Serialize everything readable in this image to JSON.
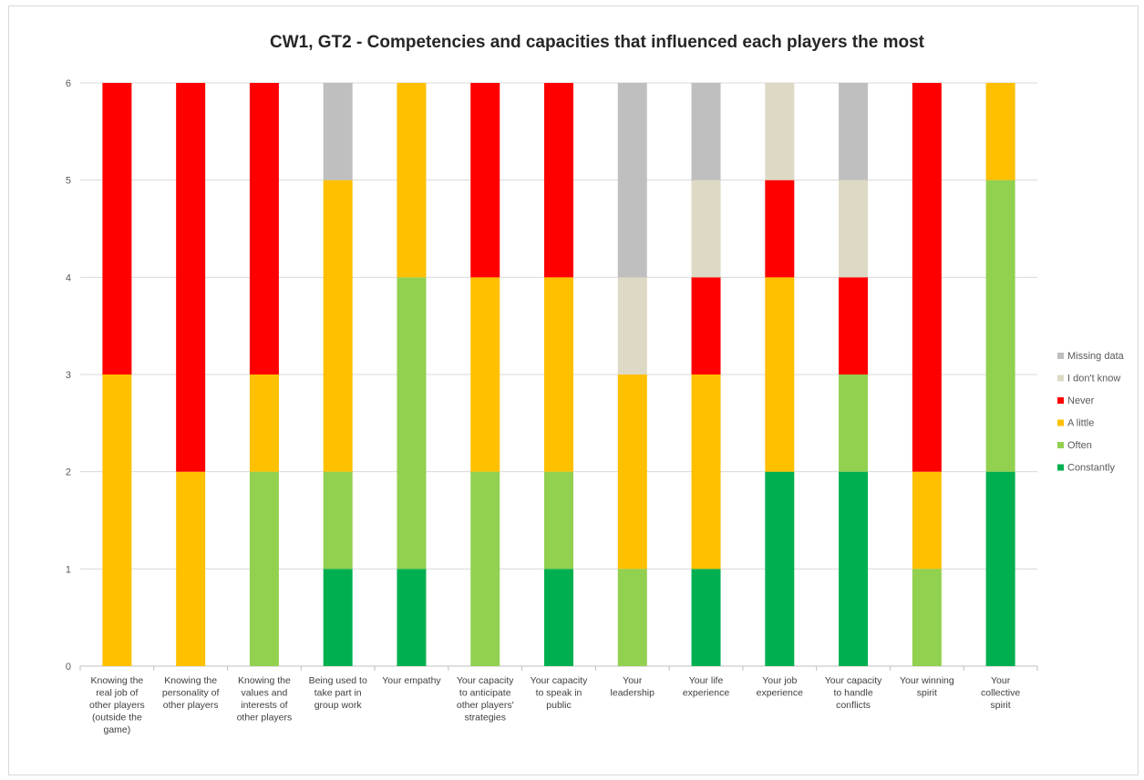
{
  "chart_data": {
    "type": "bar",
    "stacked": true,
    "title": "CW1, GT2 -  Competencies and capacities that influenced each players the most",
    "xlabel": "",
    "ylabel": "",
    "ylim": [
      0,
      6
    ],
    "yticks": [
      0,
      1,
      2,
      3,
      4,
      5,
      6
    ],
    "grid": true,
    "legend_position": "right",
    "categories": [
      [
        "Knowing the",
        "real job of",
        "other players",
        "(outside the",
        "game)"
      ],
      [
        "Knowing the",
        "personality of",
        "other players"
      ],
      [
        "Knowing the",
        "values and",
        "interests of",
        "other players"
      ],
      [
        "Being used to",
        "take part in",
        "group work"
      ],
      [
        "Your empathy"
      ],
      [
        "Your capacity",
        "to anticipate",
        "other players'",
        "strategies"
      ],
      [
        "Your capacity",
        "to speak in",
        "public"
      ],
      [
        "Your",
        "leadership"
      ],
      [
        "Your life",
        "experience"
      ],
      [
        "Your job",
        "experience"
      ],
      [
        "Your capacity",
        "to handle",
        "conflicts"
      ],
      [
        "Your winning",
        "spirit"
      ],
      [
        "Your",
        "collective",
        "spirit"
      ]
    ],
    "series": [
      {
        "name": "Constantly",
        "color": "#00b050",
        "values": [
          0,
          0,
          0,
          1,
          1,
          0,
          1,
          0,
          1,
          2,
          2,
          0,
          2
        ]
      },
      {
        "name": "Often",
        "color": "#92d050",
        "values": [
          0,
          0,
          2,
          1,
          3,
          2,
          1,
          1,
          0,
          0,
          1,
          1,
          3
        ]
      },
      {
        "name": "A little",
        "color": "#ffc000",
        "values": [
          3,
          2,
          1,
          3,
          2,
          2,
          2,
          2,
          2,
          2,
          0,
          1,
          1
        ]
      },
      {
        "name": "Never",
        "color": "#ff0000",
        "values": [
          3,
          4,
          3,
          0,
          0,
          2,
          2,
          0,
          1,
          1,
          1,
          4,
          0
        ]
      },
      {
        "name": "I don't know",
        "color": "#ddd9c4",
        "values": [
          0,
          0,
          0,
          0,
          0,
          0,
          0,
          1,
          1,
          1,
          1,
          0,
          0
        ]
      },
      {
        "name": "Missing data",
        "color": "#bfbfbf",
        "values": [
          0,
          0,
          0,
          1,
          0,
          0,
          0,
          2,
          1,
          0,
          1,
          0,
          0
        ]
      }
    ]
  }
}
